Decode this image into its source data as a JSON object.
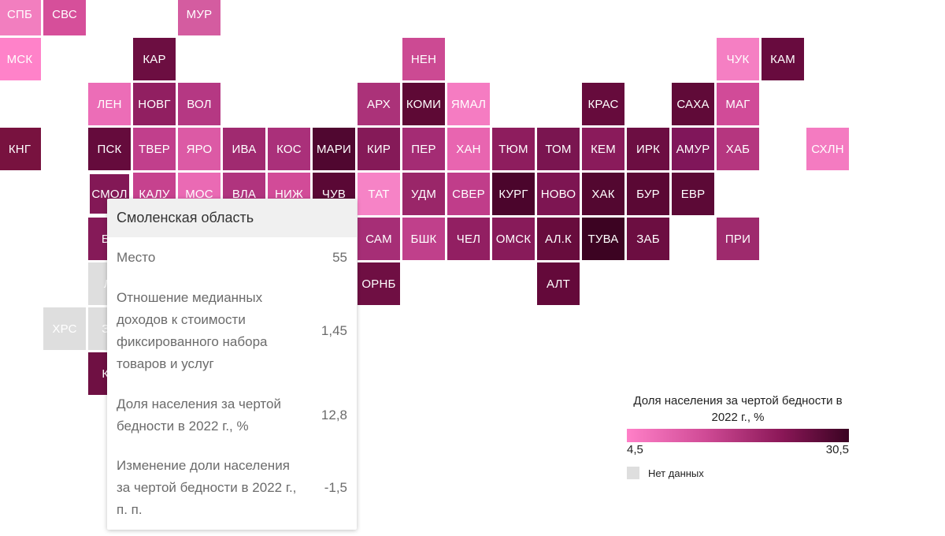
{
  "map": {
    "regions": [
      {
        "abbr": "СПБ",
        "color": "#f27ebf"
      },
      {
        "abbr": "СВС",
        "color": "#d64f9a"
      },
      {
        "abbr": "МУР",
        "color": "#d45ca0"
      },
      {
        "abbr": "МСК",
        "color": "#ff82c9"
      },
      {
        "abbr": "КАР",
        "color": "#6c0e41"
      },
      {
        "abbr": "НЕН",
        "color": "#cc4a93"
      },
      {
        "abbr": "ЧУК",
        "color": "#f57fc3"
      },
      {
        "abbr": "КАМ",
        "color": "#680b3e"
      },
      {
        "abbr": "ЛЕН",
        "color": "#ec6db7"
      },
      {
        "abbr": "НОВГ",
        "color": "#911f61"
      },
      {
        "abbr": "ВОЛ",
        "color": "#b53883"
      },
      {
        "abbr": "АРХ",
        "color": "#ab3279"
      },
      {
        "abbr": "КОМИ",
        "color": "#5e0935"
      },
      {
        "abbr": "ЯМАЛ",
        "color": "#f57cc2"
      },
      {
        "abbr": "КРАС",
        "color": "#660b3c"
      },
      {
        "abbr": "САХА",
        "color": "#600a38"
      },
      {
        "abbr": "МАГ",
        "color": "#d14b98"
      },
      {
        "abbr": "КНГ",
        "color": "#78123f"
      },
      {
        "abbr": "ПСК",
        "color": "#650b3c"
      },
      {
        "abbr": "ТВЕР",
        "color": "#c13f8c"
      },
      {
        "abbr": "ЯРО",
        "color": "#dc5aa5"
      },
      {
        "abbr": "ИВА",
        "color": "#a02a70"
      },
      {
        "abbr": "КОС",
        "color": "#aa307a"
      },
      {
        "abbr": "МАРИ",
        "color": "#500730"
      },
      {
        "abbr": "КИР",
        "color": "#851a58"
      },
      {
        "abbr": "ПЕР",
        "color": "#a42c74"
      },
      {
        "abbr": "ХАН",
        "color": "#e865b0"
      },
      {
        "abbr": "ТЮМ",
        "color": "#8e1d5e"
      },
      {
        "abbr": "ТОМ",
        "color": "#7a1550"
      },
      {
        "abbr": "КЕМ",
        "color": "#8a1b5b"
      },
      {
        "abbr": "ИРК",
        "color": "#6c0e42"
      },
      {
        "abbr": "АМУР",
        "color": "#80165a"
      },
      {
        "abbr": "ХАБ",
        "color": "#b5367f"
      },
      {
        "abbr": "СХЛН",
        "color": "#f47bc1"
      },
      {
        "abbr": "СМОЛ",
        "color": "#831856"
      },
      {
        "abbr": "КАЛУ",
        "color": "#c6428e"
      },
      {
        "abbr": "МОС",
        "color": "#ea6ab4"
      },
      {
        "abbr": "ВЛА",
        "color": "#b0347e"
      },
      {
        "abbr": "НИЖ",
        "color": "#d24b98"
      },
      {
        "abbr": "ЧУВ",
        "color": "#5a0835"
      },
      {
        "abbr": "ТАТ",
        "color": "#f683c6"
      },
      {
        "abbr": "УДМ",
        "color": "#9a2669"
      },
      {
        "abbr": "СВЕР",
        "color": "#c03d8a"
      },
      {
        "abbr": "КУРГ",
        "color": "#4b052c"
      },
      {
        "abbr": "НОВО",
        "color": "#7d1552"
      },
      {
        "abbr": "ХАК",
        "color": "#530730"
      },
      {
        "abbr": "БУР",
        "color": "#5a0834"
      },
      {
        "abbr": "ЕВР",
        "color": "#5c0936"
      },
      {
        "abbr": "БЕ",
        "color": "#851a58"
      },
      {
        "abbr": "САМ",
        "color": "#a62e76"
      },
      {
        "abbr": "БШК",
        "color": "#c0408b"
      },
      {
        "abbr": "ЧЕЛ",
        "color": "#921f62"
      },
      {
        "abbr": "ОМСК",
        "color": "#881b5a"
      },
      {
        "abbr": "АЛ.К",
        "color": "#680c3d"
      },
      {
        "abbr": "ТУВА",
        "color": "#3c0322"
      },
      {
        "abbr": "ЗАБ",
        "color": "#6c0e41"
      },
      {
        "abbr": "ПРИ",
        "color": "#9e2a6d"
      },
      {
        "abbr": "ЛІ",
        "color": "#dedede"
      },
      {
        "abbr": "ОРНБ",
        "color": "#6f0f43"
      },
      {
        "abbr": "АЛТ",
        "color": "#64093a"
      },
      {
        "abbr": "ХРС",
        "color": "#dedede"
      },
      {
        "abbr": "ЗА",
        "color": "#dedede"
      },
      {
        "abbr": "КР",
        "color": "#6f1043"
      }
    ]
  },
  "tooltip": {
    "title": "Смоленская область",
    "rows": [
      {
        "label": "Место",
        "value": "55"
      },
      {
        "label": "Отношение медианных доходов к стоимости фиксированного набора товаров и услуг",
        "value": "1,45"
      },
      {
        "label": "Доля населения за чертой бедности в 2022 г., %",
        "value": "12,8"
      },
      {
        "label": "Изменение доли населения за чертой бедности в 2022 г., п. п.",
        "value": "-1,5"
      }
    ]
  },
  "legend": {
    "title": "Доля населения за чертой бедности в 2022 г., %",
    "min": "4,5",
    "max": "30,5",
    "gradient": [
      "#ff80c8",
      "#d04b96",
      "#8a1757",
      "#3a0322"
    ],
    "no_data_label": "Нет данных",
    "no_data_color": "#dedede"
  }
}
